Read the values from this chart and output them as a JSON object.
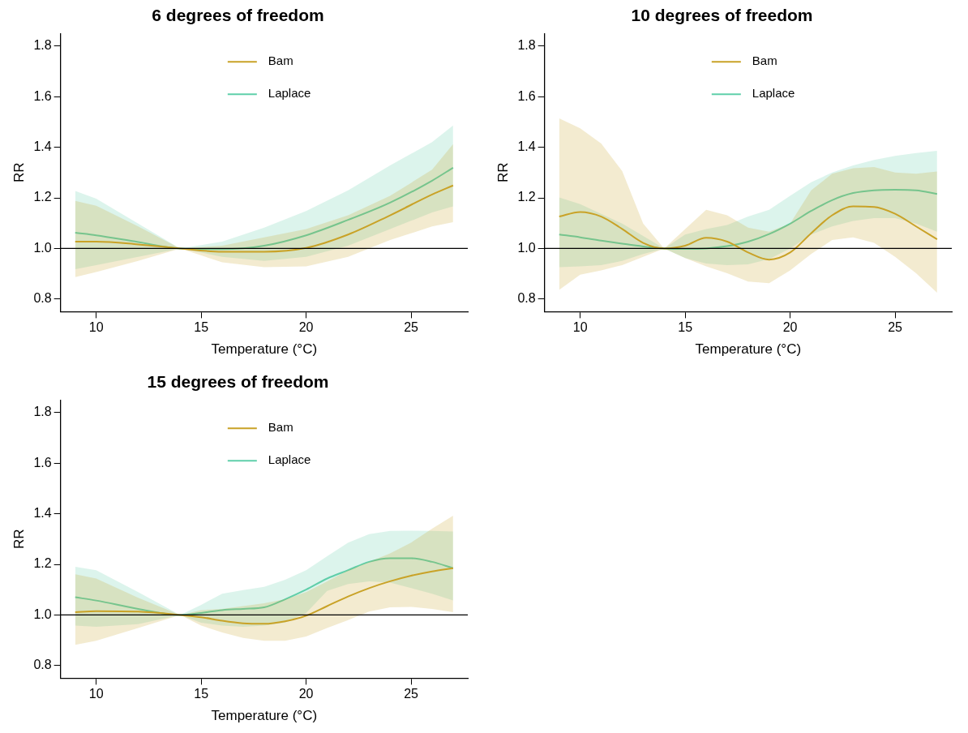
{
  "chart_data": [
    {
      "type": "line",
      "title": "6 degrees of freedom",
      "xlabel": "Temperature (°C)",
      "ylabel": "RR",
      "legend": "top",
      "grid": false,
      "x": [
        9,
        10,
        12,
        14,
        16,
        18,
        20,
        22,
        24,
        26,
        27
      ],
      "xlim": [
        8.3,
        27.7
      ],
      "xticks": [
        10,
        15,
        20,
        25
      ],
      "ylim": [
        0.75,
        1.85
      ],
      "yticks": [
        {
          "value": 0.8,
          "label": "0.8"
        },
        {
          "value": 1.0,
          "label": "1.0"
        },
        {
          "value": 1.2,
          "label": "1.2"
        },
        {
          "value": 1.4,
          "label": "1.4"
        },
        {
          "value": 1.6,
          "label": "1.6"
        },
        {
          "value": 1.8,
          "label": "1.8"
        }
      ],
      "ref_lines": [
        {
          "axis": "y",
          "value": 1.0,
          "color": "#000000"
        }
      ],
      "series": [
        {
          "name": "Bam",
          "color": "#c9a227",
          "values": [
            1.027,
            1.027,
            1.016,
            1.0,
            0.987,
            0.987,
            1.002,
            1.055,
            1.131,
            1.213,
            1.249
          ],
          "lower": [
            0.887,
            0.907,
            0.951,
            1.0,
            0.945,
            0.926,
            0.929,
            0.967,
            1.033,
            1.087,
            1.104
          ],
          "upper": [
            1.188,
            1.169,
            1.087,
            1.0,
            1.011,
            1.044,
            1.077,
            1.131,
            1.208,
            1.311,
            1.412
          ]
        },
        {
          "name": "Laplace",
          "color": "#5fcfaa",
          "values": [
            1.062,
            1.052,
            1.025,
            1.0,
            0.997,
            1.011,
            1.052,
            1.113,
            1.181,
            1.268,
            1.319
          ],
          "lower": [
            0.918,
            0.934,
            0.967,
            1.0,
            0.967,
            0.951,
            0.967,
            1.011,
            1.077,
            1.142,
            1.166
          ],
          "upper": [
            1.227,
            1.197,
            1.098,
            1.0,
            1.027,
            1.082,
            1.148,
            1.23,
            1.328,
            1.42,
            1.486
          ]
        }
      ]
    },
    {
      "type": "line",
      "title": "10 degrees of freedom",
      "xlabel": "Temperature (°C)",
      "ylabel": "RR",
      "legend": "top",
      "grid": false,
      "x": [
        9,
        10,
        11,
        12,
        13,
        14,
        15,
        16,
        17,
        18,
        19,
        20,
        21,
        22,
        23,
        24,
        25,
        26,
        27
      ],
      "xlim": [
        8.3,
        27.7
      ],
      "xticks": [
        10,
        15,
        20,
        25
      ],
      "ylim": [
        0.75,
        1.85
      ],
      "yticks": [
        {
          "value": 0.8,
          "label": "0.8"
        },
        {
          "value": 1.0,
          "label": "1.0"
        },
        {
          "value": 1.2,
          "label": "1.2"
        },
        {
          "value": 1.4,
          "label": "1.4"
        },
        {
          "value": 1.6,
          "label": "1.6"
        },
        {
          "value": 1.8,
          "label": "1.8"
        }
      ],
      "ref_lines": [
        {
          "axis": "y",
          "value": 1.0,
          "color": "#000000"
        }
      ],
      "series": [
        {
          "name": "Bam",
          "color": "#c9a227",
          "values": [
            1.126,
            1.144,
            1.126,
            1.077,
            1.022,
            1.0,
            1.011,
            1.042,
            1.027,
            0.984,
            0.956,
            0.984,
            1.06,
            1.131,
            1.166,
            1.164,
            1.137,
            1.087,
            1.036
          ],
          "lower": [
            0.836,
            0.896,
            0.913,
            0.934,
            0.967,
            1.0,
            0.962,
            0.929,
            0.902,
            0.869,
            0.863,
            0.913,
            0.978,
            1.033,
            1.044,
            1.022,
            0.967,
            0.902,
            0.825
          ],
          "upper": [
            1.514,
            1.475,
            1.415,
            1.306,
            1.098,
            1.0,
            1.077,
            1.153,
            1.131,
            1.082,
            1.066,
            1.098,
            1.23,
            1.295,
            1.317,
            1.322,
            1.3,
            1.295,
            1.304
          ]
        },
        {
          "name": "Laplace",
          "color": "#5fcfaa",
          "values": [
            1.055,
            1.044,
            1.031,
            1.019,
            1.008,
            1.0,
            0.998,
            1.0,
            1.009,
            1.027,
            1.057,
            1.098,
            1.148,
            1.191,
            1.219,
            1.23,
            1.232,
            1.23,
            1.215
          ],
          "lower": [
            0.926,
            0.929,
            0.934,
            0.951,
            0.978,
            1.0,
            0.962,
            0.94,
            0.934,
            0.937,
            0.958,
            1.0,
            1.055,
            1.087,
            1.109,
            1.12,
            1.12,
            1.098,
            1.066
          ],
          "upper": [
            1.202,
            1.175,
            1.137,
            1.098,
            1.049,
            1.0,
            1.055,
            1.077,
            1.093,
            1.126,
            1.153,
            1.208,
            1.262,
            1.3,
            1.328,
            1.35,
            1.366,
            1.377,
            1.386
          ]
        }
      ]
    },
    {
      "type": "line",
      "title": "15 degrees of freedom",
      "xlabel": "Temperature (°C)",
      "ylabel": "RR",
      "legend": "top",
      "grid": false,
      "x": [
        9,
        10,
        12,
        14,
        15,
        16,
        17,
        18,
        19,
        20,
        21,
        22,
        23,
        24,
        25,
        26,
        27
      ],
      "xlim": [
        8.3,
        27.7
      ],
      "xticks": [
        10,
        15,
        20,
        25
      ],
      "ylim": [
        0.75,
        1.85
      ],
      "yticks": [
        {
          "value": 0.8,
          "label": "0.8"
        },
        {
          "value": 1.0,
          "label": "1.0"
        },
        {
          "value": 1.2,
          "label": "1.2"
        },
        {
          "value": 1.4,
          "label": "1.4"
        },
        {
          "value": 1.6,
          "label": "1.6"
        },
        {
          "value": 1.8,
          "label": "1.8"
        }
      ],
      "ref_lines": [
        {
          "axis": "y",
          "value": 1.0,
          "color": "#000000"
        }
      ],
      "series": [
        {
          "name": "Bam",
          "color": "#c9a227",
          "values": [
            1.011,
            1.015,
            1.013,
            1.0,
            0.991,
            0.977,
            0.967,
            0.965,
            0.975,
            0.997,
            1.035,
            1.073,
            1.106,
            1.133,
            1.155,
            1.172,
            1.185
          ],
          "lower": [
            0.882,
            0.898,
            0.948,
            1.0,
            0.958,
            0.931,
            0.909,
            0.898,
            0.898,
            0.915,
            0.948,
            0.98,
            1.013,
            1.03,
            1.032,
            1.024,
            1.011
          ],
          "upper": [
            1.161,
            1.144,
            1.068,
            1.0,
            1.019,
            1.024,
            1.035,
            1.046,
            1.062,
            1.09,
            1.133,
            1.177,
            1.21,
            1.243,
            1.286,
            1.341,
            1.392
          ]
        },
        {
          "name": "Laplace",
          "color": "#5fcfaa",
          "values": [
            1.07,
            1.057,
            1.024,
            1.0,
            1.008,
            1.019,
            1.024,
            1.03,
            1.062,
            1.1,
            1.144,
            1.177,
            1.21,
            1.224,
            1.224,
            1.21,
            1.185
          ],
          "lower": [
            0.958,
            0.953,
            0.964,
            1.0,
            0.969,
            0.958,
            0.953,
            0.958,
            0.97,
            1.008,
            1.095,
            1.122,
            1.133,
            1.128,
            1.106,
            1.084,
            1.057
          ],
          "upper": [
            1.19,
            1.177,
            1.09,
            1.0,
            1.04,
            1.084,
            1.098,
            1.111,
            1.139,
            1.177,
            1.232,
            1.286,
            1.319,
            1.332,
            1.333,
            1.332,
            1.33
          ]
        }
      ]
    }
  ]
}
